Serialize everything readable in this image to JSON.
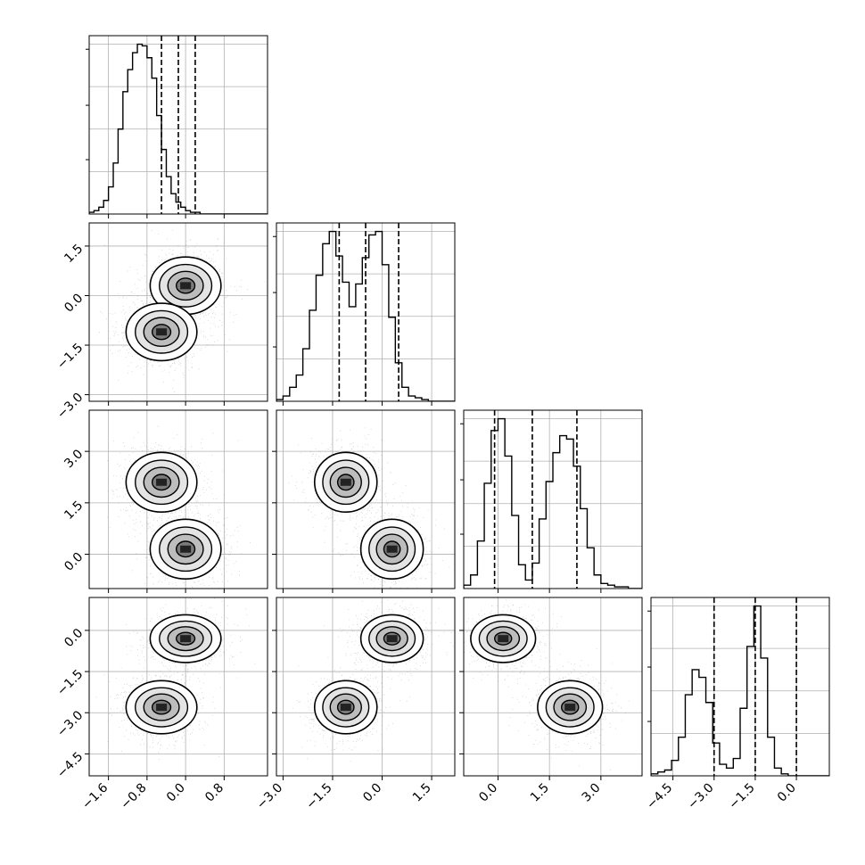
{
  "chart_data": {
    "type": "corner",
    "title": "",
    "parameters": [
      {
        "label": "",
        "range": [
          -2.0,
          1.7
        ],
        "ticks": [
          -1.6,
          -0.8,
          0.0,
          0.8
        ],
        "tick_labels": [
          "−1.6",
          "−0.8",
          "0.0",
          "0.8"
        ],
        "quantiles": [
          -0.5,
          -0.15,
          0.2
        ]
      },
      {
        "label": "",
        "range": [
          -3.2,
          2.2
        ],
        "ticks": [
          -3.0,
          -1.5,
          0.0,
          1.5
        ],
        "tick_labels": [
          "−3.0",
          "−1.5",
          "0.0",
          "1.5"
        ],
        "quantiles": [
          -1.3,
          -0.5,
          0.5
        ]
      },
      {
        "label": "",
        "range": [
          -1.0,
          4.2
        ],
        "ticks": [
          0.0,
          1.5,
          3.0
        ],
        "tick_labels": [
          "0.0",
          "1.5",
          "3.0"
        ],
        "quantiles": [
          -0.1,
          1.0,
          2.3
        ]
      },
      {
        "label": "",
        "range": [
          -5.3,
          1.2
        ],
        "ticks": [
          -4.5,
          -3.0,
          -1.5,
          0.0
        ],
        "tick_labels": [
          "−4.5",
          "−3.0",
          "−1.5",
          "0.0"
        ],
        "quantiles": [
          -3.0,
          -1.5,
          0.0
        ]
      }
    ],
    "row_tick_labels": [
      {
        "param": 1,
        "ticks": [
          -3.0,
          -1.5,
          0.0,
          1.5
        ],
        "labels": [
          "−3.0",
          "−1.5",
          "0.0",
          "1.5"
        ]
      },
      {
        "param": 2,
        "ticks": [
          0.0,
          1.5,
          3.0
        ],
        "labels": [
          "0.0",
          "1.5",
          "3.0"
        ]
      },
      {
        "param": 3,
        "ticks": [
          -4.5,
          -3.0,
          -1.5,
          0.0
        ],
        "labels": [
          "−4.5",
          "−3.0",
          "−1.5",
          "0.0"
        ]
      }
    ],
    "histograms": [
      {
        "param": 0,
        "bin_edges_start": -2.0,
        "bin_width": 0.1,
        "counts": [
          1,
          2,
          4,
          8,
          16,
          30,
          50,
          72,
          85,
          95,
          100,
          99,
          92,
          80,
          58,
          38,
          22,
          12,
          7,
          4,
          2,
          1,
          1,
          0,
          0,
          0,
          0,
          0,
          0,
          0,
          0,
          0,
          0,
          0,
          0,
          0,
          0
        ]
      },
      {
        "param": 1,
        "bin_edges_start": -3.2,
        "bin_width": 0.2,
        "counts": [
          1,
          3,
          8,
          15,
          30,
          52,
          72,
          90,
          97,
          83,
          68,
          54,
          67,
          82,
          95,
          97,
          78,
          48,
          22,
          8,
          3,
          2,
          1,
          0,
          0,
          0,
          0
        ]
      },
      {
        "param": 2,
        "bin_edges_start": -1.0,
        "bin_width": 0.2,
        "counts": [
          2,
          8,
          28,
          62,
          93,
          100,
          78,
          43,
          14,
          5,
          15,
          41,
          63,
          80,
          90,
          88,
          72,
          47,
          24,
          8,
          3,
          2,
          1,
          1,
          0,
          0
        ]
      },
      {
        "param": 3,
        "bin_edges_start": -5.3,
        "bin_width": 0.25,
        "counts": [
          1,
          2,
          3,
          8,
          20,
          42,
          55,
          51,
          38,
          17,
          6,
          4,
          9,
          35,
          67,
          88,
          61,
          20,
          4,
          1,
          0,
          0,
          0,
          0,
          0,
          0
        ]
      }
    ],
    "joint_components": [
      {
        "weight": 0.5,
        "mean": [
          0.0,
          0.3,
          0.15,
          -0.3
        ],
        "sd": [
          0.35,
          0.45,
          0.45,
          0.45
        ]
      },
      {
        "weight": 0.5,
        "mean": [
          -0.5,
          -1.1,
          2.1,
          -2.8
        ],
        "sd": [
          0.35,
          0.45,
          0.45,
          0.5
        ]
      }
    ],
    "contour_levels": 4,
    "grid": true
  }
}
